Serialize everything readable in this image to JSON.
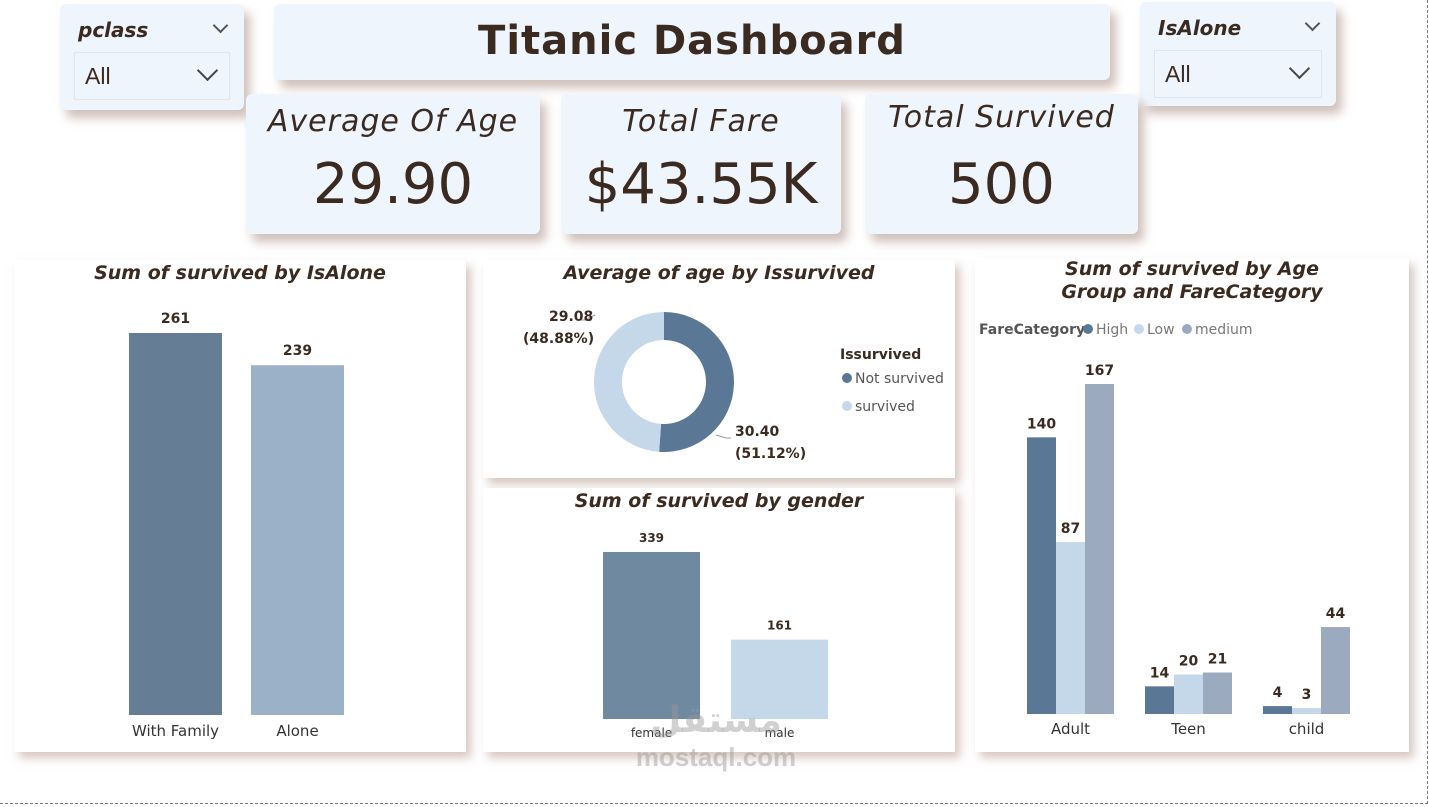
{
  "title": "Titanic Dashboard",
  "slicers": [
    {
      "label": "pclass",
      "value": "All"
    },
    {
      "label": "IsAlone",
      "value": "All"
    }
  ],
  "kpis": [
    {
      "label": "Average Of Age",
      "value": "29.90"
    },
    {
      "label": "Total Fare",
      "value": "$43.55K"
    },
    {
      "label": "Total Survived",
      "value": "500"
    }
  ],
  "chart_data": [
    {
      "type": "bar",
      "title": "Sum of survived by IsAlone",
      "categories": [
        "With Family",
        "Alone"
      ],
      "values": [
        261,
        239
      ],
      "colors": [
        "#657d95",
        "#9ab1c7"
      ]
    },
    {
      "type": "pie",
      "title": "Average of age by Issurvived",
      "legend_title": "Issurvived",
      "labels": [
        "Not survived",
        "survived"
      ],
      "values": [
        30.4,
        29.08
      ],
      "percent_labels": [
        "(51.12%)",
        "(48.88%)"
      ],
      "value_labels": [
        "30.40",
        "29.08"
      ],
      "colors": [
        "#5a7896",
        "#c5d8ea"
      ]
    },
    {
      "type": "bar",
      "title": "Sum of survived by gender",
      "categories": [
        "female",
        "male"
      ],
      "values": [
        339,
        161
      ],
      "colors": [
        "#6f8aa0",
        "#c5d8ea"
      ]
    },
    {
      "type": "bar",
      "title": "Sum of survived by Age Group and FareCategory",
      "legend_title": "FareCategory",
      "categories": [
        "Adult",
        "Teen",
        "child"
      ],
      "series": [
        {
          "name": "High",
          "values": [
            140,
            14,
            4
          ],
          "color": "#5a7896"
        },
        {
          "name": "Low",
          "values": [
            87,
            20,
            3
          ],
          "color": "#c5d8ea"
        },
        {
          "name": "medium",
          "values": [
            167,
            21,
            44
          ],
          "color": "#9caac0"
        }
      ]
    }
  ],
  "watermark": {
    "arabic": "مستقل",
    "latin": "mostaql.com"
  }
}
